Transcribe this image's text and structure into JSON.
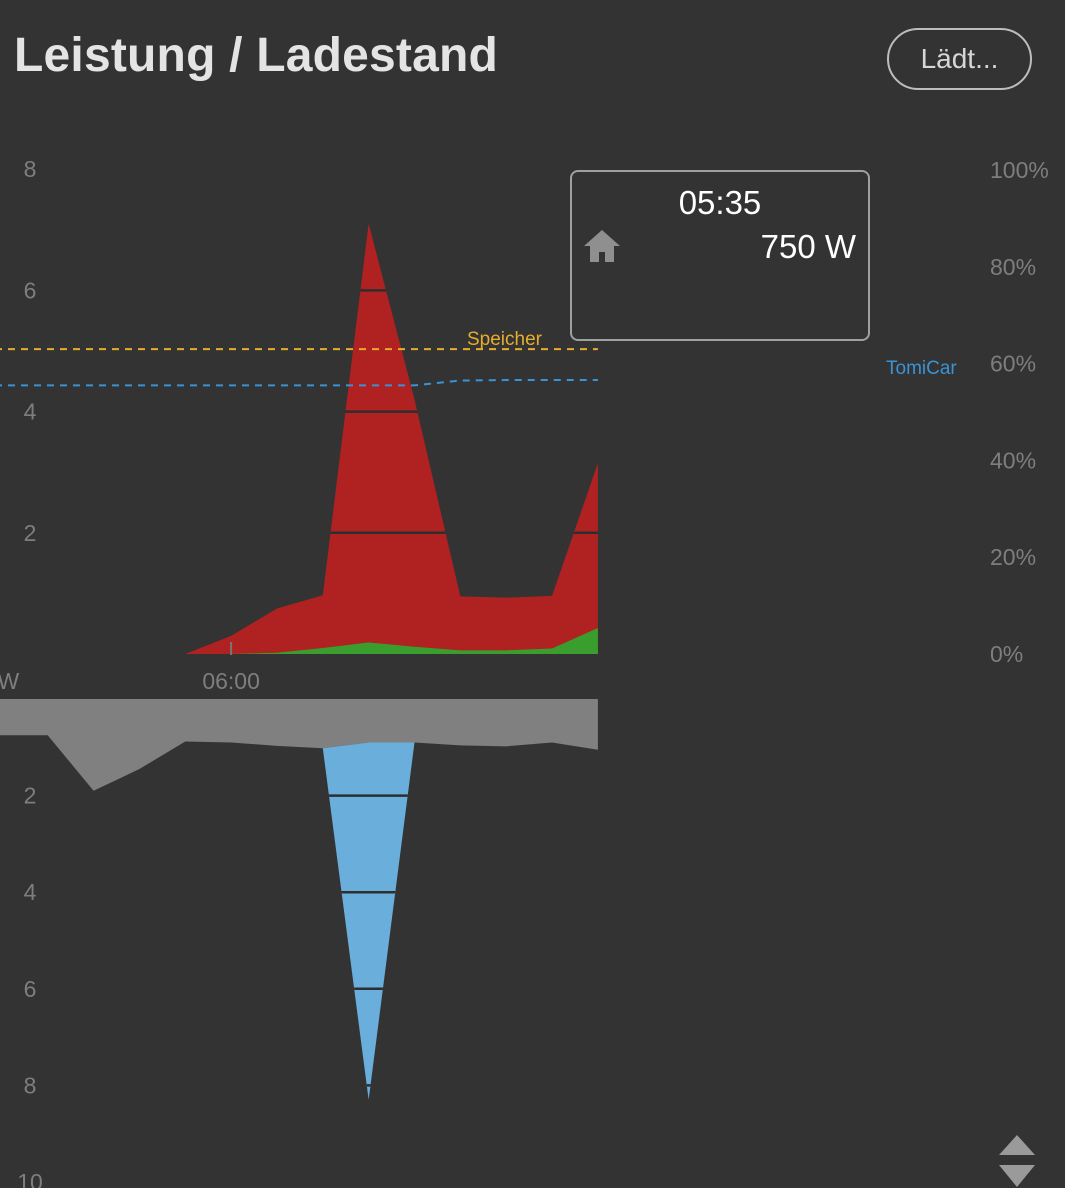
{
  "header": {
    "title": "Leistung / Ladestand",
    "status_button": "Lädt..."
  },
  "tooltip": {
    "time": "05:35",
    "value": "750 W",
    "icon": "house-icon"
  },
  "colors": {
    "background": "#333333",
    "consumption": "#b02121",
    "pv": "#3a9e2e",
    "grid": "#808080",
    "battery": "#6aaedb",
    "speicher_line": "#e6ad2c",
    "car_line": "#3a93d4",
    "tick_label": "#7e7e7e"
  },
  "chart_data": [
    {
      "type": "area",
      "id": "power-positive",
      "x": [
        0,
        1,
        2,
        3,
        4,
        5,
        6,
        7,
        8,
        9,
        10,
        11,
        12,
        13,
        14
      ],
      "x_tick_labels": [
        {
          "x": 6,
          "label": "06:00"
        }
      ],
      "y_unit_label": "kW",
      "ylim": [
        0,
        8
      ],
      "y_ticks": [
        2,
        4,
        6,
        8
      ],
      "series": [
        {
          "key": "consumption",
          "values": [
            0.02,
            0,
            0,
            0,
            0,
            0,
            0.3,
            0.75,
            0.97,
            7.1,
            4.2,
            0.95,
            0.93,
            0.96,
            3.15
          ]
        },
        {
          "key": "pv",
          "values": [
            0,
            0,
            0,
            0,
            0,
            0,
            0,
            0.02,
            0.1,
            0.19,
            0.12,
            0.06,
            0.06,
            0.09,
            0.43
          ]
        }
      ],
      "secondary_axis": {
        "ylim": [
          0,
          100
        ],
        "ticks": [
          "0%",
          "20%",
          "40%",
          "60%",
          "80%",
          "100%"
        ]
      },
      "soc_lines": [
        {
          "name": "Speicher",
          "values": [
            63,
            63,
            63,
            63,
            63,
            63,
            63,
            63,
            63,
            63,
            63,
            63,
            63,
            63,
            63
          ]
        },
        {
          "name": "TomiCar",
          "values": [
            55.5,
            55.5,
            55.5,
            55.5,
            55.5,
            55.5,
            55.5,
            55.5,
            55.5,
            55.5,
            55.5,
            56.5,
            56.6,
            56.6,
            56.6
          ]
        }
      ]
    },
    {
      "type": "area",
      "id": "power-negative",
      "x": [
        0,
        1,
        2,
        3,
        4,
        5,
        6,
        7,
        8,
        9,
        10,
        11,
        12,
        13,
        14
      ],
      "ylim": [
        0,
        10
      ],
      "y_ticks": [
        2,
        4,
        6,
        8,
        10
      ],
      "series": [
        {
          "key": "grid",
          "values": [
            0.75,
            0.75,
            0.75,
            1.9,
            1.45,
            0.88,
            0.9,
            0.97,
            1.02,
            0.9,
            0.9,
            0.96,
            0.98,
            0.9,
            1.05
          ]
        },
        {
          "key": "battery",
          "values": [
            0,
            0,
            0,
            0,
            0,
            0,
            0,
            0,
            0,
            8.3,
            0.9,
            0,
            0,
            0,
            0
          ]
        }
      ]
    }
  ]
}
